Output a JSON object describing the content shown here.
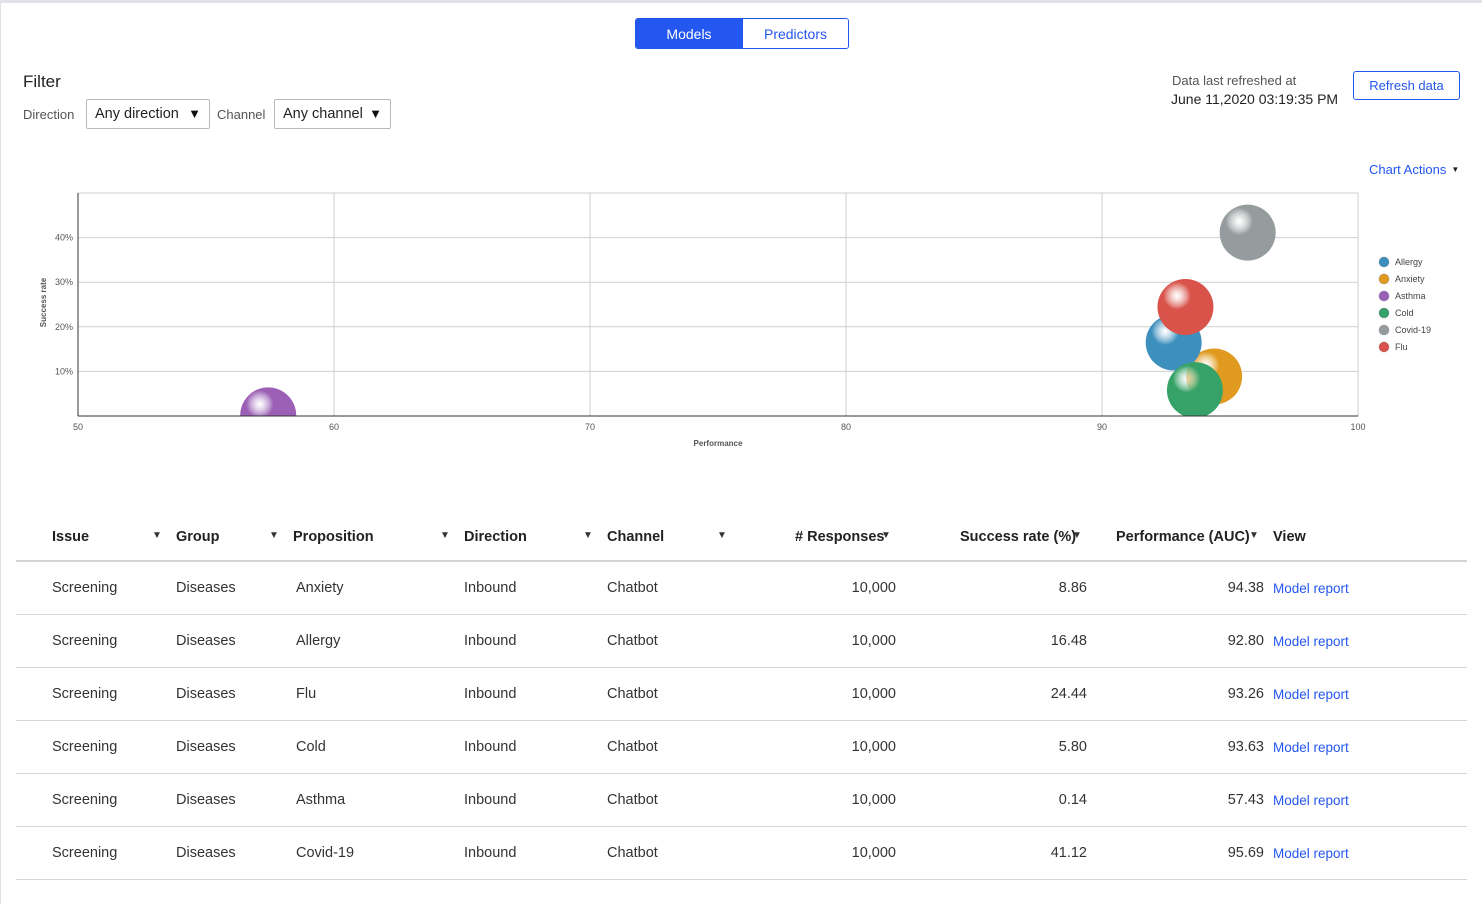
{
  "toggle": {
    "models_label": "Models",
    "predictors_label": "Predictors"
  },
  "filter": {
    "title": "Filter",
    "direction_label": "Direction",
    "direction_value": "Any direction",
    "channel_label": "Channel",
    "channel_value": "Any channel"
  },
  "refresh": {
    "label": "Data last refreshed at",
    "timestamp": "June 11,2020 03:19:35 PM",
    "button_label": "Refresh data"
  },
  "chart_actions_label": "Chart Actions",
  "chart_data": {
    "type": "bubble",
    "xlabel": "Performance",
    "ylabel": "Success rate",
    "xlim": [
      50,
      100
    ],
    "ylim": [
      0,
      50
    ],
    "x_ticks": [
      "50",
      "60",
      "70",
      "80",
      "90",
      "100"
    ],
    "y_ticks": [
      "10%",
      "20%",
      "30%",
      "40%"
    ],
    "grid": true,
    "legend_placement": "right",
    "series": [
      {
        "name": "Allergy",
        "x": 92.8,
        "y": 16.48,
        "color": "#3d8fbd"
      },
      {
        "name": "Anxiety",
        "x": 94.38,
        "y": 8.86,
        "color": "#e09a1f"
      },
      {
        "name": "Asthma",
        "x": 57.43,
        "y": 0.14,
        "color": "#9b5fb5"
      },
      {
        "name": "Cold",
        "x": 93.63,
        "y": 5.8,
        "color": "#36a267"
      },
      {
        "name": "Covid-19",
        "x": 95.69,
        "y": 41.12,
        "color": "#959c9d"
      },
      {
        "name": "Flu",
        "x": 93.26,
        "y": 24.44,
        "color": "#d9534a"
      }
    ]
  },
  "table": {
    "columns": {
      "issue": "Issue",
      "group": "Group",
      "proposition": "Proposition",
      "direction": "Direction",
      "channel": "Channel",
      "responses": "# Responses",
      "success": "Success rate (%)",
      "performance": "Performance (AUC)",
      "view": "View"
    },
    "rows": [
      {
        "issue": "Screening",
        "group": "Diseases",
        "proposition": "Anxiety",
        "direction": "Inbound",
        "channel": "Chatbot",
        "responses": "10,000",
        "success": "8.86",
        "performance": "94.38",
        "view": "Model report"
      },
      {
        "issue": "Screening",
        "group": "Diseases",
        "proposition": "Allergy",
        "direction": "Inbound",
        "channel": "Chatbot",
        "responses": "10,000",
        "success": "16.48",
        "performance": "92.80",
        "view": "Model report"
      },
      {
        "issue": "Screening",
        "group": "Diseases",
        "proposition": "Flu",
        "direction": "Inbound",
        "channel": "Chatbot",
        "responses": "10,000",
        "success": "24.44",
        "performance": "93.26",
        "view": "Model report"
      },
      {
        "issue": "Screening",
        "group": "Diseases",
        "proposition": "Cold",
        "direction": "Inbound",
        "channel": "Chatbot",
        "responses": "10,000",
        "success": "5.80",
        "performance": "93.63",
        "view": "Model report"
      },
      {
        "issue": "Screening",
        "group": "Diseases",
        "proposition": "Asthma",
        "direction": "Inbound",
        "channel": "Chatbot",
        "responses": "10,000",
        "success": "0.14",
        "performance": "57.43",
        "view": "Model report"
      },
      {
        "issue": "Screening",
        "group": "Diseases",
        "proposition": "Covid-19",
        "direction": "Inbound",
        "channel": "Chatbot",
        "responses": "10,000",
        "success": "41.12",
        "performance": "95.69",
        "view": "Model report"
      }
    ]
  }
}
